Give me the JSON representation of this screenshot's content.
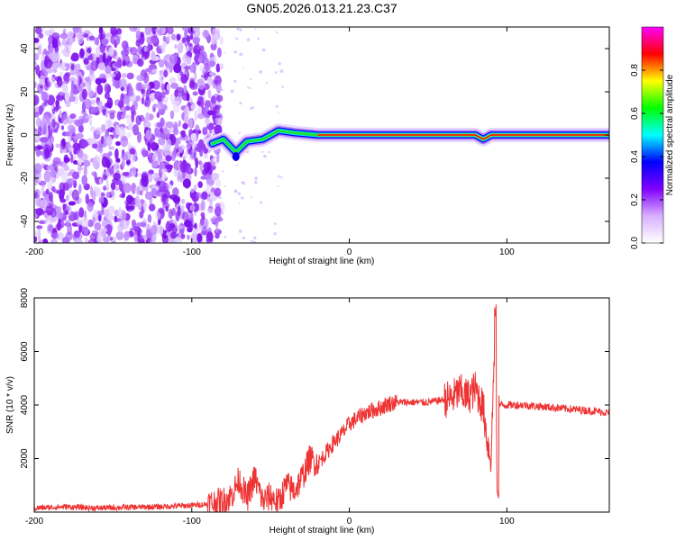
{
  "title": "GN05.2026.013.21.23.C37",
  "chart_data": [
    {
      "type": "heatmap",
      "xlabel": "Height of straight line (km)",
      "ylabel": "Frequency (Hz)",
      "xlim": [
        -200,
        165
      ],
      "ylim": [
        -50,
        50
      ],
      "xticks": [
        -200,
        -100,
        0,
        100
      ],
      "xtick_labels": [
        "-200",
        "-100",
        "0",
        "100"
      ],
      "yticks": [
        -40,
        -20,
        0,
        20,
        40
      ],
      "ytick_labels": [
        "-40",
        "-20",
        "0",
        "20",
        "40"
      ],
      "colorbar": {
        "label": "Normalized spectral amplitude",
        "range": [
          0,
          1
        ],
        "ticks": [
          0.0,
          0.2,
          0.4,
          0.6,
          0.8
        ],
        "tick_labels": [
          "0.0",
          "0.2",
          "0.4",
          "0.6",
          "0.8"
        ],
        "colormap": [
          "#ffffff",
          "#d8b0ff",
          "#8000ff",
          "#0000ff",
          "#00ffff",
          "#00ff00",
          "#ffff00",
          "#ff0000",
          "#ff00ff"
        ]
      },
      "features": {
        "noise_region_x": [
          -200,
          -87
        ],
        "carrier_frequency_hz": 0,
        "carrier_track": [
          {
            "x": -87,
            "y": -4
          },
          {
            "x": -80,
            "y": -2
          },
          {
            "x": -72,
            "y": -8
          },
          {
            "x": -65,
            "y": -3
          },
          {
            "x": -55,
            "y": -2
          },
          {
            "x": -45,
            "y": 2
          },
          {
            "x": -35,
            "y": 1
          },
          {
            "x": -20,
            "y": 0
          },
          {
            "x": 80,
            "y": 0
          },
          {
            "x": 85,
            "y": -2
          },
          {
            "x": 90,
            "y": 0
          },
          {
            "x": 165,
            "y": 0
          }
        ]
      }
    },
    {
      "type": "line",
      "xlabel": "Height of straight line (km)",
      "ylabel": "SNR (10 * v/v)",
      "xlim": [
        -200,
        165
      ],
      "ylim": [
        0,
        8000
      ],
      "xticks": [
        -200,
        -100,
        0,
        100
      ],
      "xtick_labels": [
        "-200",
        "-100",
        "0",
        "100"
      ],
      "yticks": [
        2000,
        4000,
        6000,
        8000
      ],
      "ytick_labels": [
        "2000",
        "4000",
        "6000",
        "8000"
      ],
      "color": "#ee3333",
      "series": [
        {
          "name": "SNR",
          "x": [
            -200,
            -180,
            -160,
            -140,
            -120,
            -100,
            -90,
            -80,
            -75,
            -70,
            -65,
            -60,
            -55,
            -50,
            -45,
            -40,
            -35,
            -30,
            -25,
            -20,
            -15,
            -10,
            -5,
            0,
            5,
            10,
            15,
            20,
            25,
            30,
            35,
            40,
            50,
            60,
            65,
            70,
            75,
            80,
            85,
            88,
            90,
            92,
            93,
            94,
            95,
            100,
            110,
            120,
            130,
            140,
            150,
            160,
            165
          ],
          "y": [
            150,
            200,
            150,
            180,
            200,
            250,
            300,
            400,
            600,
            1200,
            500,
            1300,
            400,
            600,
            350,
            1000,
            800,
            1300,
            2000,
            1800,
            2200,
            2600,
            2900,
            3300,
            3500,
            3700,
            3800,
            3900,
            4050,
            4100,
            4100,
            4100,
            4100,
            4200,
            4250,
            4500,
            4300,
            4600,
            3900,
            2500,
            2000,
            6000,
            4500,
            800,
            4000,
            4000,
            4000,
            3950,
            3900,
            3850,
            3800,
            3750,
            3700
          ]
        }
      ]
    }
  ]
}
